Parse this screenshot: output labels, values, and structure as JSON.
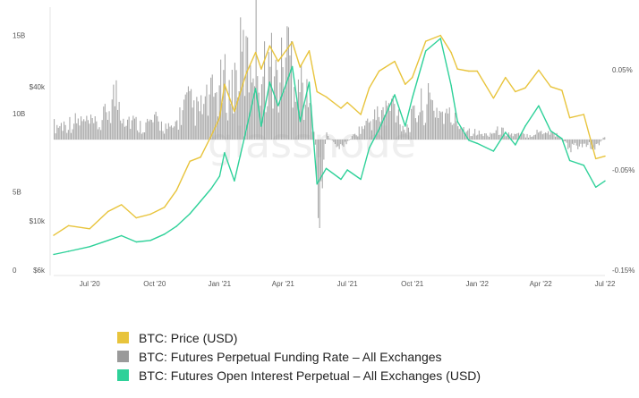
{
  "chart_data": {
    "type": "line",
    "watermark": "glassnode",
    "x_ticks": [
      "Jul '20",
      "Oct '20",
      "Jan '21",
      "Apr '21",
      "Jul '21",
      "Oct '21",
      "Jan '22",
      "Apr '22",
      "Jul '22"
    ],
    "y_left_oi_ticks": [
      "0",
      "5B",
      "10B",
      "15B"
    ],
    "y_left_price_ticks": [
      "$6k",
      "$10k",
      "$40k"
    ],
    "y_right_funding_ticks": [
      "0.05%",
      "-0.05%",
      "-0.15%"
    ],
    "x_range": [
      "2020-05-11",
      "2022-07-01"
    ],
    "y_oi_range": [
      0,
      16
    ],
    "y_price_range_log": [
      6000,
      80000
    ],
    "y_funding_range": [
      -0.15,
      0.1
    ],
    "series": [
      {
        "name": "BTC: Price (USD)",
        "color": "#e8c43c",
        "axis": "left-log",
        "x": [
          "2020-05-11",
          "2020-06-01",
          "2020-07-01",
          "2020-07-27",
          "2020-08-15",
          "2020-09-05",
          "2020-09-25",
          "2020-10-15",
          "2020-11-01",
          "2020-11-20",
          "2020-12-05",
          "2020-12-20",
          "2021-01-01",
          "2021-01-08",
          "2021-01-22",
          "2021-02-08",
          "2021-02-21",
          "2021-03-01",
          "2021-03-13",
          "2021-03-25",
          "2021-04-14",
          "2021-04-25",
          "2021-05-08",
          "2021-05-19",
          "2021-06-01",
          "2021-06-22",
          "2021-07-01",
          "2021-07-20",
          "2021-08-01",
          "2021-08-15",
          "2021-09-06",
          "2021-09-21",
          "2021-10-01",
          "2021-10-20",
          "2021-11-10",
          "2021-11-25",
          "2021-12-04",
          "2021-12-20",
          "2022-01-01",
          "2022-01-24",
          "2022-02-10",
          "2022-02-24",
          "2022-03-10",
          "2022-03-29",
          "2022-04-15",
          "2022-05-01",
          "2022-05-12",
          "2022-06-01",
          "2022-06-18",
          "2022-07-01"
        ],
        "y": [
          8600,
          9500,
          9200,
          11000,
          11800,
          10300,
          10700,
          11500,
          13700,
          18500,
          19300,
          24000,
          29000,
          41000,
          31000,
          46000,
          57000,
          48000,
          61000,
          52000,
          63500,
          49000,
          58000,
          38000,
          36000,
          32000,
          34000,
          30000,
          39500,
          47000,
          52000,
          41000,
          44000,
          64000,
          68000,
          57000,
          48000,
          47000,
          47000,
          35500,
          44000,
          38000,
          39500,
          47500,
          40000,
          38500,
          29000,
          30000,
          19000,
          19500
        ]
      },
      {
        "name": "BTC: Futures Open Interest Perpetual – All Exchanges (USD)",
        "color": "#2ed199",
        "axis": "left",
        "unit": "B",
        "x": [
          "2020-05-11",
          "2020-06-01",
          "2020-07-01",
          "2020-07-27",
          "2020-08-15",
          "2020-09-05",
          "2020-09-25",
          "2020-10-15",
          "2020-11-01",
          "2020-11-20",
          "2020-12-05",
          "2020-12-20",
          "2021-01-01",
          "2021-01-08",
          "2021-01-22",
          "2021-02-08",
          "2021-02-21",
          "2021-03-01",
          "2021-03-13",
          "2021-03-25",
          "2021-04-14",
          "2021-04-25",
          "2021-05-08",
          "2021-05-19",
          "2021-06-01",
          "2021-06-22",
          "2021-07-01",
          "2021-07-20",
          "2021-08-01",
          "2021-08-15",
          "2021-09-06",
          "2021-09-21",
          "2021-10-01",
          "2021-10-20",
          "2021-11-10",
          "2021-11-25",
          "2021-12-04",
          "2021-12-20",
          "2022-01-01",
          "2022-01-24",
          "2022-02-10",
          "2022-02-24",
          "2022-03-10",
          "2022-03-29",
          "2022-04-15",
          "2022-05-01",
          "2022-05-12",
          "2022-06-01",
          "2022-06-18",
          "2022-07-01"
        ],
        "y": [
          1.0,
          1.2,
          1.5,
          1.9,
          2.2,
          1.8,
          1.9,
          2.3,
          2.8,
          3.6,
          4.4,
          5.2,
          6.0,
          7.5,
          5.7,
          9.0,
          11.6,
          9.2,
          12.0,
          10.5,
          13.0,
          9.5,
          12.0,
          5.5,
          6.5,
          5.8,
          6.4,
          5.8,
          7.8,
          9.0,
          11.2,
          9.2,
          11.0,
          14.0,
          14.8,
          11.8,
          9.5,
          8.3,
          8.1,
          7.6,
          8.8,
          8.0,
          9.2,
          10.5,
          8.9,
          8.4,
          7.0,
          6.7,
          5.3,
          5.7
        ]
      },
      {
        "name": "BTC: Futures Perpetual Funding Rate – All Exchanges",
        "color": "#9a9a9a",
        "axis": "right",
        "unit": "%",
        "x": [
          "2020-05-15",
          "2020-06-15",
          "2020-07-15",
          "2020-08-06",
          "2020-08-20",
          "2020-09-10",
          "2020-10-01",
          "2020-10-25",
          "2020-11-15",
          "2020-12-01",
          "2020-12-20",
          "2021-01-08",
          "2021-01-15",
          "2021-02-01",
          "2021-02-10",
          "2021-02-20",
          "2021-03-01",
          "2021-03-15",
          "2021-03-25",
          "2021-04-05",
          "2021-04-12",
          "2021-04-20",
          "2021-05-01",
          "2021-05-15",
          "2021-05-19",
          "2021-06-01",
          "2021-06-20",
          "2021-07-10",
          "2021-08-01",
          "2021-08-20",
          "2021-09-05",
          "2021-09-20",
          "2021-10-10",
          "2021-10-25",
          "2021-11-10",
          "2021-12-01",
          "2021-12-20",
          "2022-01-10",
          "2022-02-01",
          "2022-02-20",
          "2022-03-15",
          "2022-04-05",
          "2022-04-25",
          "2022-05-12",
          "2022-06-01",
          "2022-06-18",
          "2022-07-01"
        ],
        "y": [
          0.015,
          0.02,
          0.015,
          0.05,
          0.025,
          0.015,
          0.02,
          0.01,
          0.04,
          0.03,
          0.045,
          0.06,
          0.05,
          0.09,
          0.08,
          0.11,
          0.07,
          0.08,
          0.06,
          0.1,
          0.09,
          0.07,
          0.05,
          0.015,
          -0.09,
          0.005,
          -0.01,
          0.005,
          0.02,
          0.03,
          0.04,
          0.01,
          0.035,
          0.04,
          0.03,
          0.02,
          0.01,
          0.005,
          0.01,
          0.005,
          0.005,
          0.01,
          0.005,
          -0.01,
          -0.005,
          -0.008,
          0.005
        ]
      }
    ],
    "legend_placement": "bottom",
    "grid": false
  },
  "legend": [
    {
      "label": "BTC: Price (USD)",
      "color": "#e8c43c"
    },
    {
      "label": "BTC: Futures Perpetual Funding Rate – All Exchanges",
      "color": "#9a9a9a"
    },
    {
      "label": "BTC: Futures Open Interest Perpetual – All Exchanges (USD)",
      "color": "#2ed199"
    }
  ]
}
